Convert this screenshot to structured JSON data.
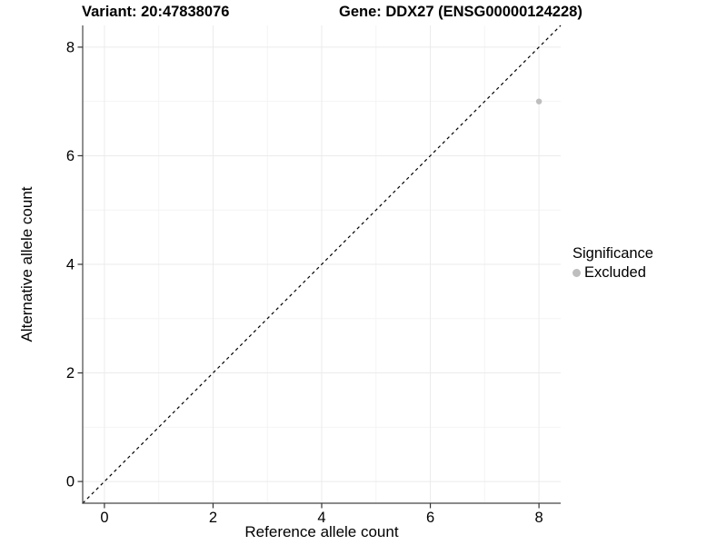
{
  "chart_data": {
    "type": "scatter",
    "title_left": "Variant: 20:47838076",
    "title_right": "Gene: DDX27 (ENSG00000124228)",
    "xlabel": "Reference allele count",
    "ylabel": "Alternative allele count",
    "xlim": [
      -0.4,
      8.4
    ],
    "ylim": [
      -0.4,
      8.4
    ],
    "x_ticks": [
      0,
      2,
      4,
      6,
      8
    ],
    "y_ticks": [
      0,
      2,
      4,
      6,
      8
    ],
    "x_minor_ticks": [
      1,
      3,
      5,
      7
    ],
    "y_minor_ticks": [
      1,
      3,
      5,
      7
    ],
    "grid": true,
    "legend_position": "right",
    "legend": {
      "title": "Significance",
      "items": [
        {
          "label": "Excluded",
          "color": "#bebebe"
        }
      ]
    },
    "series": [
      {
        "name": "Excluded",
        "color": "#bebebe",
        "points": [
          {
            "x": 8,
            "y": 7
          }
        ]
      }
    ],
    "reference_line": {
      "type": "identity",
      "slope": 1,
      "intercept": 0,
      "style": "dashed",
      "color": "#000000"
    },
    "colors": {
      "axis_line": "#464646",
      "tick_mark": "#333333",
      "grid_major": "#ebebeb",
      "grid_minor": "#f4f4f4",
      "background": "#ffffff"
    }
  }
}
